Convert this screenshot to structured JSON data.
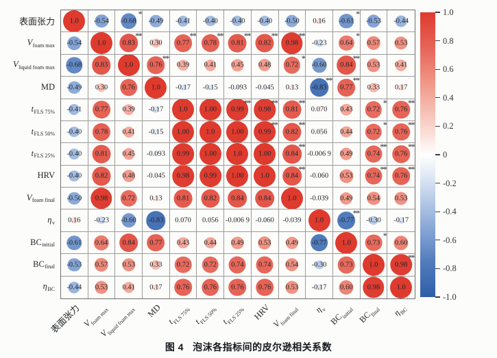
{
  "caption": {
    "prefix": "图 4",
    "text": "泡沫各指标间的皮尔逊相关系数"
  },
  "chart_data": {
    "type": "heatmap",
    "subtype": "pearson-correlation-bubble-matrix",
    "title": "图 4 泡沫各指标间的皮尔逊相关系数",
    "grid": "on",
    "legend_position": "right-colorbar",
    "variables": [
      {
        "main": "表面张力",
        "sub": "",
        "italic": false
      },
      {
        "main": "V",
        "sub": "foam max",
        "italic": true
      },
      {
        "main": "V",
        "sub": "liquid foam max",
        "italic": true
      },
      {
        "main": "MD",
        "sub": "",
        "italic": false
      },
      {
        "main": "t",
        "sub": "FLS 75%",
        "italic": true
      },
      {
        "main": "t",
        "sub": "FLS 50%",
        "italic": true
      },
      {
        "main": "t",
        "sub": "FLS 25%",
        "italic": true
      },
      {
        "main": "HRV",
        "sub": "",
        "italic": false
      },
      {
        "main": "V",
        "sub": "foam final",
        "italic": true
      },
      {
        "main": "η",
        "sub": "v",
        "italic": true
      },
      {
        "main": "BC",
        "sub": "initial",
        "italic": false
      },
      {
        "main": "BC",
        "sub": "final",
        "italic": false
      },
      {
        "main": "η",
        "sub": "BC",
        "italic": true
      }
    ],
    "matrix_display": [
      [
        "1.0",
        "-0.54",
        "-0.68",
        "-0.49",
        "-0.41",
        "-0.40",
        "-0.40",
        "-0.40",
        "-0.50",
        "0.16",
        "-0.61",
        "-0.53",
        "-0.44"
      ],
      [
        "-0.54",
        "1.0",
        "0.83",
        "0.30",
        "0.77",
        "0.78",
        "0.81",
        "0.82",
        "0.98",
        "-0.23",
        "0.64",
        "0.57",
        "0.53"
      ],
      [
        "-0.68",
        "0.83",
        "1.0",
        "0.76",
        "0.39",
        "0.41",
        "0.45",
        "0.48",
        "0.72",
        "-0.60",
        "0.84",
        "0.53",
        "0.41"
      ],
      [
        "-0.49",
        "0.30",
        "0.76",
        "1.0",
        "-0.17",
        "-0.15",
        "-0.093",
        "-0.045",
        "0.13",
        "-0.83",
        "0.77",
        "0.33",
        "0.17"
      ],
      [
        "-0.41",
        "0.77",
        "0.39",
        "-0.17",
        "1.0",
        "1.00",
        "0.99",
        "0.98",
        "0.81",
        "0.070",
        "0.43",
        "0.72",
        "0.76"
      ],
      [
        "-0.40",
        "0.78",
        "0.41",
        "-0.15",
        "1.00",
        "1.0",
        "1.00",
        "0.99",
        "0.82",
        "0.056",
        "0.44",
        "0.72",
        "0.76"
      ],
      [
        "-0.40",
        "0.81",
        "0.45",
        "-0.093",
        "0.99",
        "1.00",
        "1.0",
        "1.00",
        "0.84",
        "-0.006 9",
        "0.49",
        "0.74",
        "0.76"
      ],
      [
        "-0.40",
        "0.82",
        "0.48",
        "-0.045",
        "0.98",
        "0.99",
        "1.00",
        "1.0",
        "0.84",
        "-0.060",
        "0.53",
        "0.74",
        "0.76"
      ],
      [
        "-0.50",
        "0.98",
        "0.72",
        "0.13",
        "0.81",
        "0.82",
        "0.84",
        "0.84",
        "1.0",
        "-0.039",
        "0.49",
        "0.54",
        "0.53"
      ],
      [
        "0.16",
        "-0.23",
        "-0.60",
        "-0.83",
        "0.070",
        "0.056",
        "-0.006 9",
        "-0.060",
        "-0.039",
        "1.0",
        "-0.77",
        "-0.30",
        "-0.17"
      ],
      [
        "-0.61",
        "0.64",
        "0.84",
        "0.77",
        "0.43",
        "0.44",
        "0.49",
        "0.53",
        "0.49",
        "-0.77",
        "1.0",
        "0.73",
        "0.60"
      ],
      [
        "-0.53",
        "0.57",
        "0.53",
        "0.33",
        "0.72",
        "0.72",
        "0.74",
        "0.74",
        "0.54",
        "-0.30",
        "0.73",
        "1.0",
        "0.98"
      ],
      [
        "-0.44",
        "0.53",
        "0.41",
        "0.17",
        "0.76",
        "0.76",
        "0.76",
        "0.76",
        "0.53",
        "-0.17",
        "0.60",
        "0.98",
        "1.0"
      ]
    ],
    "significance": [
      [
        "",
        "",
        "*",
        "",
        "",
        "",
        "",
        "",
        "",
        "",
        "*",
        "",
        ""
      ],
      [
        "",
        "",
        "**",
        "",
        "**",
        "**",
        "**",
        "**",
        "**",
        "",
        "*",
        "",
        ""
      ],
      [
        "",
        "",
        "",
        "**",
        "",
        "",
        "",
        "",
        "*",
        "",
        "**",
        "",
        ""
      ],
      [
        "",
        "",
        "",
        "",
        "",
        "",
        "",
        "",
        "",
        "**",
        "**",
        "",
        ""
      ],
      [
        "",
        "",
        "",
        "",
        "",
        "",
        "**",
        "**",
        "**",
        "",
        "",
        "*",
        "**"
      ],
      [
        "",
        "",
        "",
        "",
        "",
        "",
        "",
        "**",
        "**",
        "",
        "",
        "*",
        "**"
      ],
      [
        "",
        "",
        "",
        "",
        "",
        "",
        "",
        "",
        "**",
        "",
        "",
        "**",
        "**"
      ],
      [
        "",
        "",
        "",
        "",
        "",
        "",
        "",
        "",
        "**",
        "",
        "",
        "**",
        "**"
      ],
      [
        "",
        "",
        "",
        "",
        "",
        "",
        "",
        "",
        "",
        "",
        "",
        "",
        ""
      ],
      [
        "",
        "",
        "",
        "",
        "",
        "",
        "",
        "",
        "",
        "",
        "**",
        "",
        ""
      ],
      [
        "",
        "",
        "",
        "",
        "",
        "",
        "",
        "",
        "",
        "",
        "",
        "*",
        ""
      ],
      [
        "",
        "",
        "",
        "",
        "",
        "",
        "",
        "",
        "",
        "",
        "",
        "",
        "**"
      ],
      [
        "",
        "",
        "",
        "",
        "",
        "",
        "",
        "",
        "",
        "",
        "",
        "",
        ""
      ]
    ],
    "colorbar": {
      "min": -1,
      "max": 1,
      "tick_labels": [
        "1.0",
        "0.8",
        "0.6",
        "0.4",
        "0.2",
        "0",
        "-0.2",
        "-0.4",
        "-0.6",
        "-0.8",
        "-1.0"
      ]
    },
    "colors": {
      "positive_max": "#de3a2e",
      "zero": "#ffffff",
      "negative_max": "#2f5ea8"
    }
  }
}
